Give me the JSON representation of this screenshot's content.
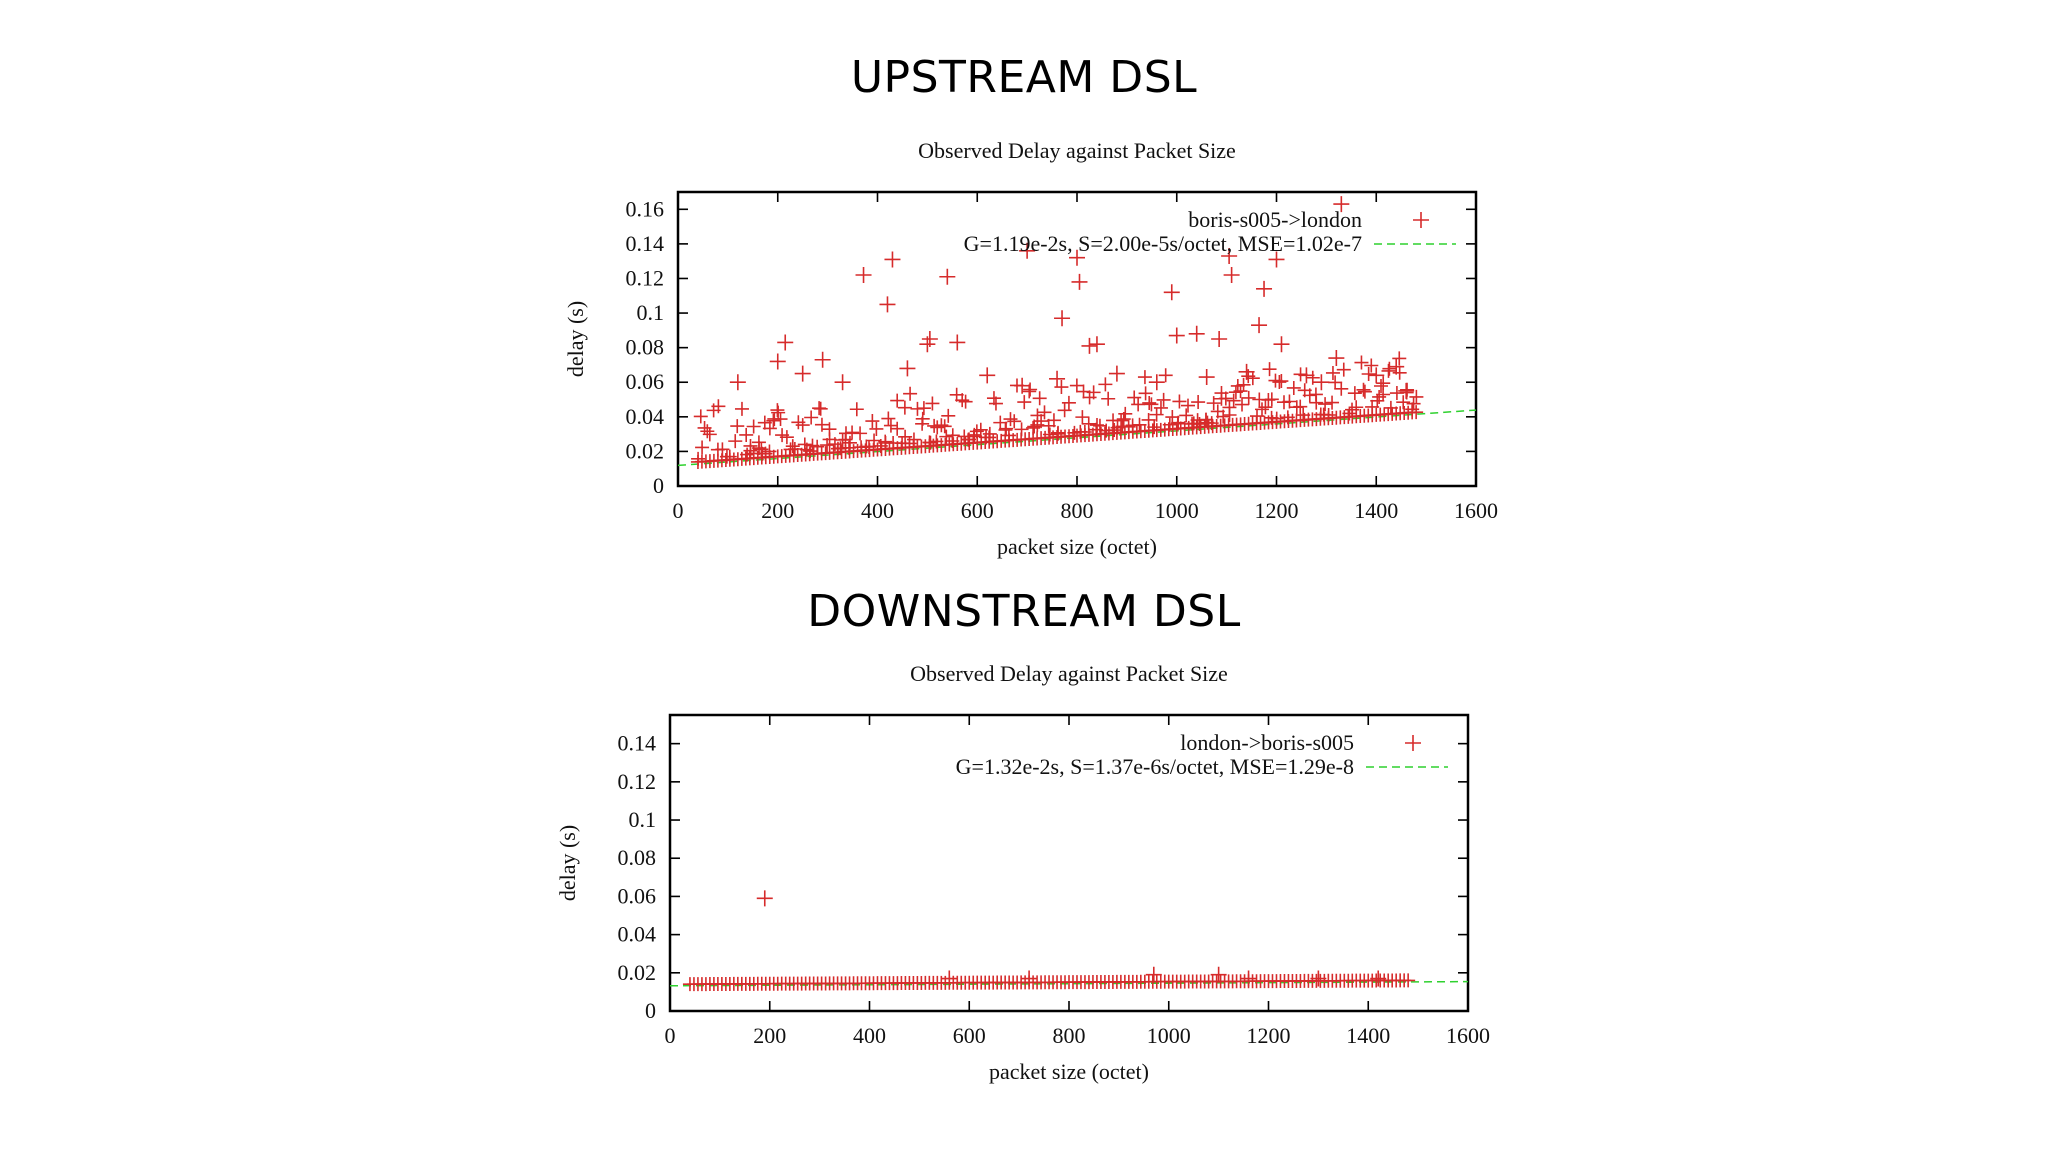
{
  "slide": {
    "upstream_title": "UPSTREAM DSL",
    "downstream_title": "DOWNSTREAM DSL"
  },
  "colors": {
    "points": "#d62b2b",
    "fit": "#2fd12f",
    "axis": "#000000"
  },
  "chart_data": [
    {
      "id": "upstream",
      "type": "scatter",
      "title": "Observed Delay against Packet Size",
      "xlabel": "packet size (octet)",
      "ylabel": "delay (s)",
      "xlim": [
        0,
        1600
      ],
      "ylim": [
        0,
        0.17
      ],
      "xticks": [
        0,
        200,
        400,
        600,
        800,
        1000,
        1200,
        1400,
        1600
      ],
      "yticks": [
        0,
        0.02,
        0.04,
        0.06,
        0.08,
        0.1,
        0.12,
        0.14,
        0.16
      ],
      "ytick_labels": [
        "0",
        "0.02",
        "0.04",
        "0.06",
        "0.08",
        "0.1",
        "0.12",
        "0.14",
        "0.16"
      ],
      "legend": [
        {
          "label": "boris-s005->london",
          "style": "points"
        },
        {
          "label": "G=1.19e-2s, S=2.00e-5s/octet, MSE=1.02e-7",
          "style": "dashed-line"
        }
      ],
      "fit": {
        "G": 0.0119,
        "S": 2e-05
      },
      "x_range": [
        40,
        1480
      ],
      "outliers": [
        [
          200,
          0.072
        ],
        [
          215,
          0.083
        ],
        [
          290,
          0.073
        ],
        [
          372,
          0.122
        ],
        [
          420,
          0.105
        ],
        [
          430,
          0.131
        ],
        [
          500,
          0.082
        ],
        [
          505,
          0.085
        ],
        [
          540,
          0.121
        ],
        [
          560,
          0.083
        ],
        [
          700,
          0.136
        ],
        [
          770,
          0.097
        ],
        [
          800,
          0.132
        ],
        [
          805,
          0.118
        ],
        [
          825,
          0.081
        ],
        [
          840,
          0.082
        ],
        [
          990,
          0.112
        ],
        [
          1000,
          0.087
        ],
        [
          1040,
          0.088
        ],
        [
          1085,
          0.085
        ],
        [
          1105,
          0.133
        ],
        [
          1110,
          0.122
        ],
        [
          1165,
          0.093
        ],
        [
          1175,
          0.114
        ],
        [
          1200,
          0.131
        ],
        [
          1210,
          0.082
        ],
        [
          1320,
          0.074
        ],
        [
          1330,
          0.163
        ],
        [
          120,
          0.06
        ],
        [
          250,
          0.065
        ],
        [
          330,
          0.06
        ],
        [
          460,
          0.068
        ],
        [
          620,
          0.064
        ],
        [
          690,
          0.058
        ],
        [
          760,
          0.062
        ],
        [
          880,
          0.065
        ],
        [
          960,
          0.06
        ],
        [
          1060,
          0.063
        ],
        [
          1140,
          0.066
        ],
        [
          1260,
          0.064
        ],
        [
          1290,
          0.06
        ],
        [
          1400,
          0.064
        ],
        [
          1440,
          0.069
        ],
        [
          1460,
          0.055
        ]
      ]
    },
    {
      "id": "downstream",
      "type": "scatter",
      "title": "Observed Delay against Packet Size",
      "xlabel": "packet size (octet)",
      "ylabel": "delay (s)",
      "xlim": [
        0,
        1600
      ],
      "ylim": [
        0,
        0.155
      ],
      "xticks": [
        0,
        200,
        400,
        600,
        800,
        1000,
        1200,
        1400,
        1600
      ],
      "yticks": [
        0,
        0.02,
        0.04,
        0.06,
        0.08,
        0.1,
        0.12,
        0.14
      ],
      "ytick_labels": [
        "0",
        "0.02",
        "0.04",
        "0.06",
        "0.08",
        "0.1",
        "0.12",
        "0.14"
      ],
      "legend": [
        {
          "label": "london->boris-s005",
          "style": "points"
        },
        {
          "label": "G=1.32e-2s, S=1.37e-6s/octet, MSE=1.29e-8",
          "style": "dashed-line"
        }
      ],
      "fit": {
        "G": 0.0132,
        "S": 1.37e-06
      },
      "x_range": [
        40,
        1480
      ],
      "outliers": [
        [
          190,
          0.059
        ],
        [
          560,
          0.017
        ],
        [
          720,
          0.017
        ],
        [
          970,
          0.019
        ],
        [
          1100,
          0.019
        ],
        [
          1160,
          0.017
        ],
        [
          1300,
          0.017
        ],
        [
          1420,
          0.017
        ]
      ]
    }
  ]
}
